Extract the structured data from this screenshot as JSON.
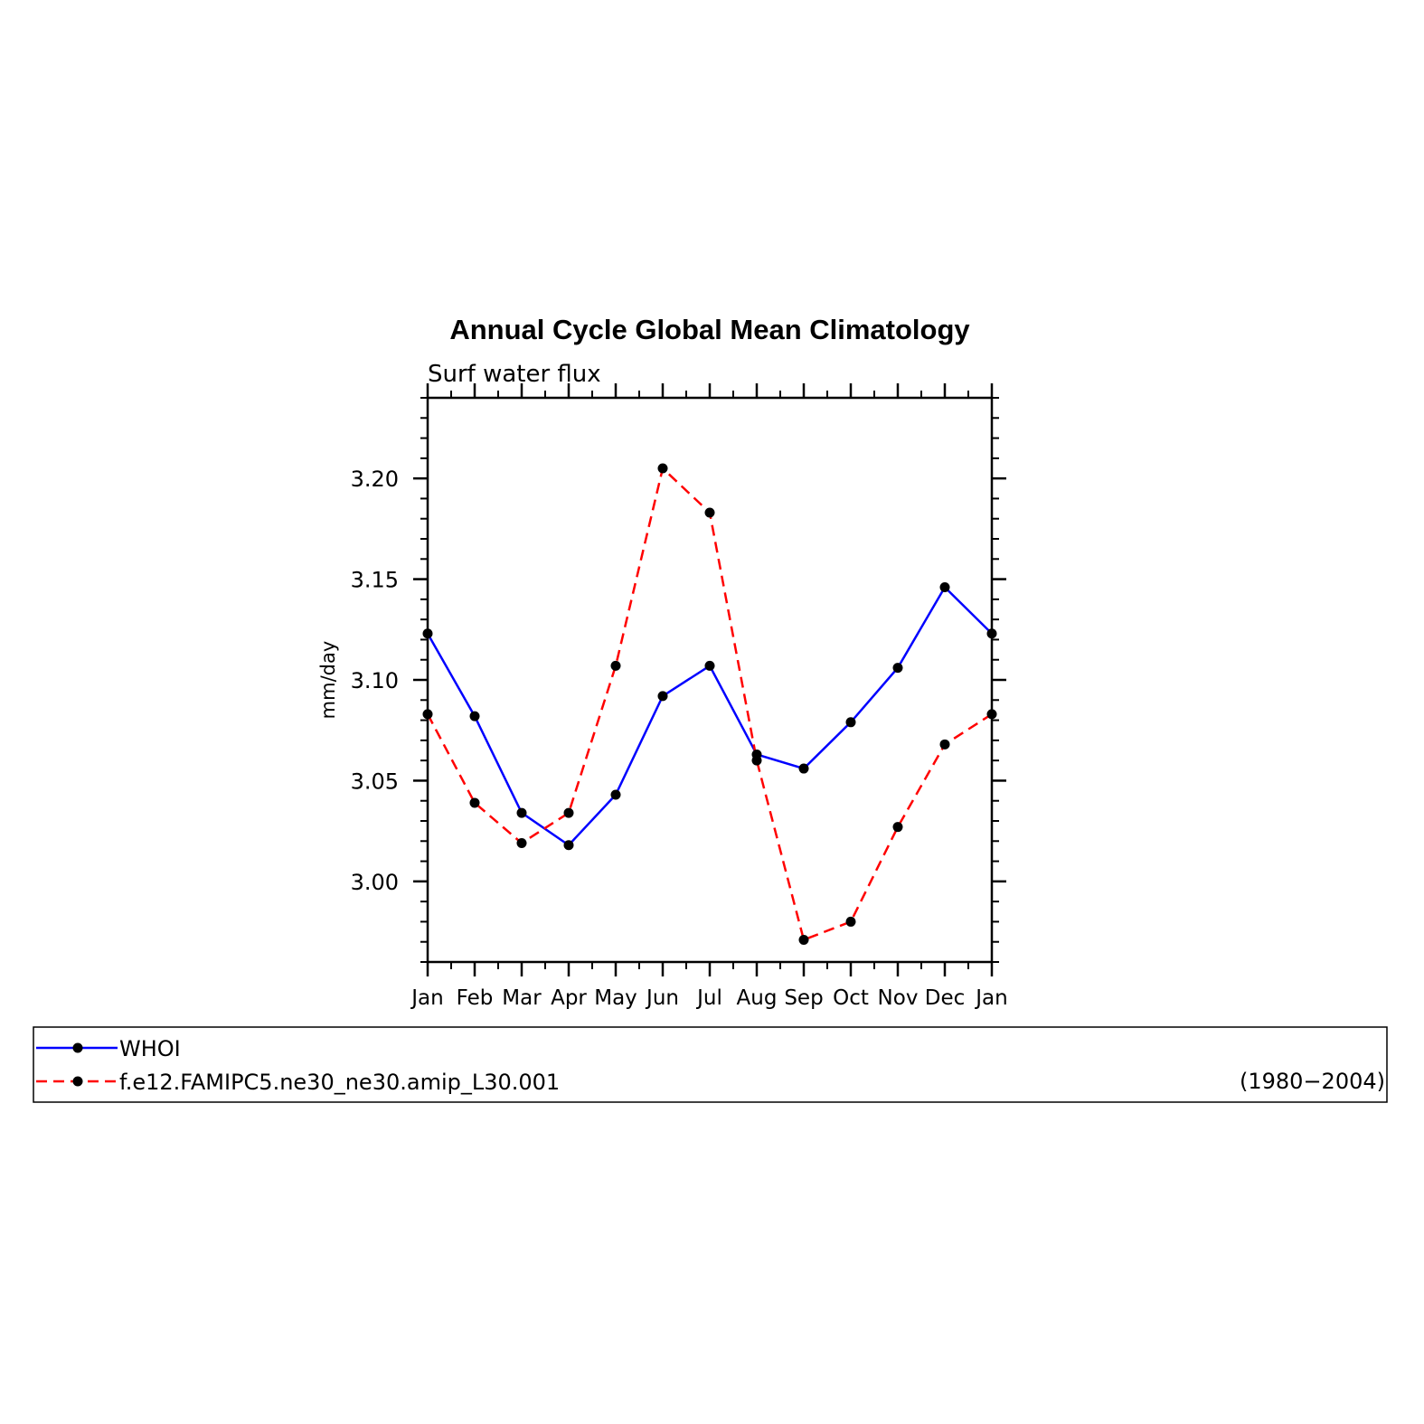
{
  "chart_data": {
    "type": "line",
    "title": "Annual Cycle Global Mean Climatology",
    "subtitle": "Surf water flux",
    "xlabel": "",
    "ylabel": "mm/day",
    "categories": [
      "Jan",
      "Feb",
      "Mar",
      "Apr",
      "May",
      "Jun",
      "Jul",
      "Aug",
      "Sep",
      "Oct",
      "Nov",
      "Dec",
      "Jan"
    ],
    "yticks": [
      "3.00",
      "3.05",
      "3.10",
      "3.15",
      "3.20"
    ],
    "ylim": [
      2.96,
      3.24
    ],
    "grid": false,
    "legend_placement": "bottom",
    "legend_note": "(1980−2004)",
    "series": [
      {
        "name": "WHOI",
        "color": "#0000ff",
        "style": "solid",
        "values": [
          3.123,
          3.082,
          3.034,
          3.018,
          3.043,
          3.092,
          3.107,
          3.063,
          3.056,
          3.079,
          3.106,
          3.146,
          3.123
        ]
      },
      {
        "name": "f.e12.FAMIPC5.ne30_ne30.amip_L30.001",
        "color": "#ff0000",
        "style": "dashed",
        "values": [
          3.083,
          3.039,
          3.019,
          3.034,
          3.107,
          3.205,
          3.183,
          3.06,
          2.971,
          2.98,
          3.027,
          3.068,
          3.083
        ]
      }
    ]
  }
}
